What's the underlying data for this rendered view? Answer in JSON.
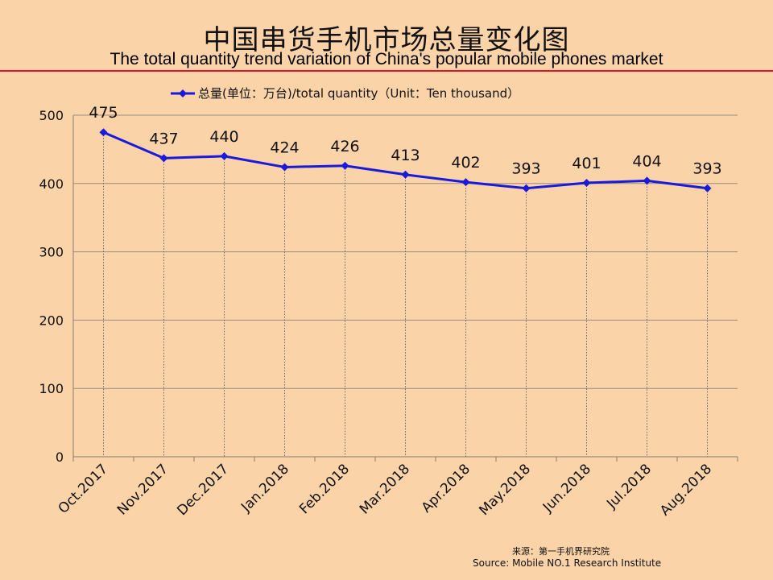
{
  "title_cn": "中国串货手机市场总量变化图",
  "title_en": "The total quantity trend variation of China's popular mobile phones market",
  "source_cn": "来源：第一手机界研究院",
  "source_en": "Source: Mobile NO.1 Research Institute",
  "colors": {
    "background": "#fbd3a8",
    "series": "#1a1adb",
    "rule": "#e0162b"
  },
  "chart_data": {
    "type": "line",
    "categories": [
      "Oct.2017",
      "Nov.2017",
      "Dec.2017",
      "Jan.2018",
      "Feb.2018",
      "Mar.2018",
      "Apr.2018",
      "May.2018",
      "Jun.2018",
      "Jul.2018",
      "Aug.2018"
    ],
    "series": [
      {
        "name": "总量(单位：万台)/total quantity（Unit：Ten thousand）",
        "values": [
          475,
          437,
          440,
          424,
          426,
          413,
          402,
          393,
          401,
          404,
          393
        ]
      }
    ],
    "yticks": [
      0,
      100,
      200,
      300,
      400,
      500
    ],
    "ylim": [
      0,
      500
    ],
    "grid": "horizontal",
    "legend": "top-center",
    "data_labels": true
  }
}
